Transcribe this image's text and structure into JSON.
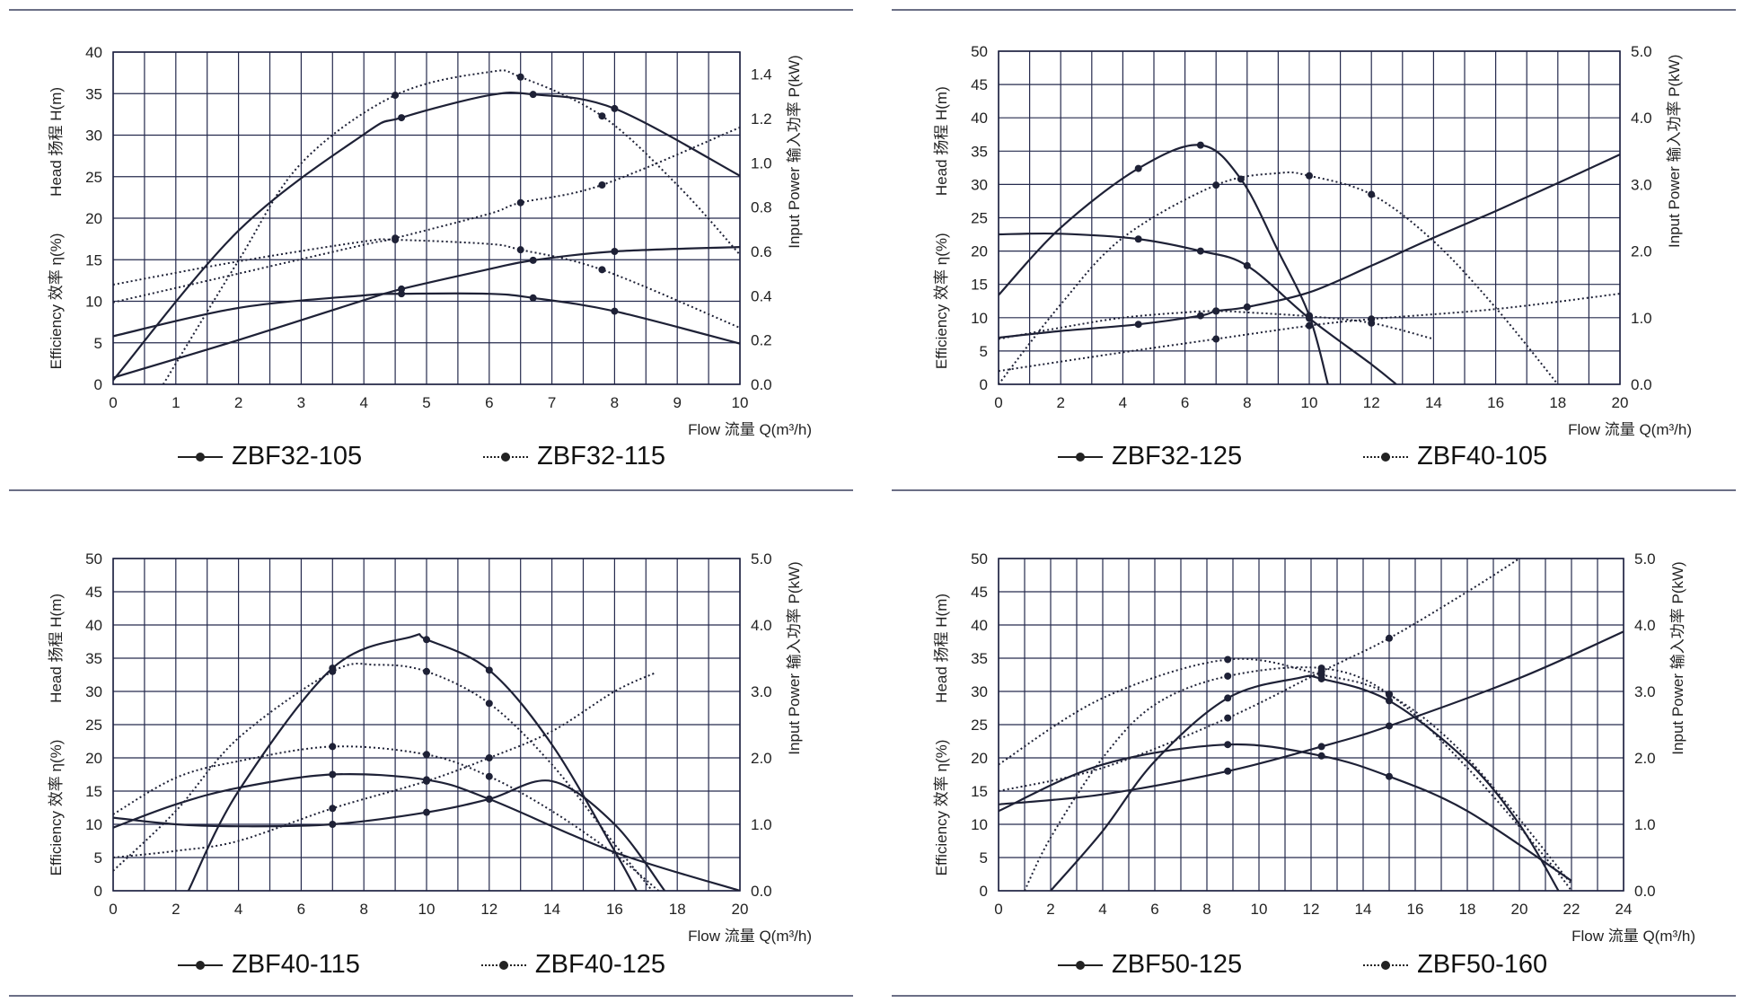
{
  "axis_text": {
    "head": "Head 扬程 H(m)",
    "efficiency": "Efficiency 效率  η(%)",
    "power": "Input Power 输入功率 P(kW)",
    "flow": "Flow 流量 Q(m³/h)"
  },
  "chart_data": [
    {
      "type": "line",
      "xlim": [
        0,
        10
      ],
      "xticks": [
        0,
        1,
        2,
        3,
        4,
        5,
        6,
        7,
        8,
        9,
        10
      ],
      "ylim": [
        0,
        40
      ],
      "yticks": [
        0,
        5,
        10,
        15,
        20,
        25,
        30,
        35,
        40
      ],
      "y2lim": [
        0,
        1.5
      ],
      "y2ticks": [
        "0.0",
        "0.2",
        "0.4",
        "0.6",
        "0.8",
        "1.0",
        "1.2",
        "1.4"
      ],
      "legend": [
        "ZBF32-105",
        "ZBF32-115"
      ],
      "series": [
        {
          "name": "ZBF32-105",
          "kind": "head",
          "style": "solid",
          "x": [
            0,
            2,
            4,
            4.6,
            6,
            6.7,
            8,
            10
          ],
          "y": [
            5.8,
            9.2,
            10.7,
            10.9,
            10.9,
            10.4,
            8.8,
            4.9
          ],
          "markers": [
            4.6,
            6.7,
            8
          ]
        },
        {
          "name": "ZBF32-105",
          "kind": "efficiency",
          "style": "solid",
          "x": [
            0,
            2,
            4,
            4.6,
            6,
            6.7,
            8,
            10
          ],
          "y": [
            0.5,
            18.5,
            30.1,
            32.1,
            34.8,
            34.9,
            33.2,
            25.1
          ],
          "markers": [
            4.6,
            6.7,
            8
          ]
        },
        {
          "name": "ZBF32-105",
          "kind": "power",
          "style": "solid",
          "x": [
            0,
            2,
            4,
            4.6,
            6,
            6.7,
            8,
            10
          ],
          "y": [
            0.03,
            0.2,
            0.38,
            0.43,
            0.52,
            0.56,
            0.6,
            0.62
          ],
          "markers": [
            4.6,
            6.7,
            8
          ]
        },
        {
          "name": "ZBF32-115",
          "kind": "head",
          "style": "dotted",
          "x": [
            0,
            2,
            4,
            4.5,
            6,
            6.5,
            7.8,
            10
          ],
          "y": [
            12,
            14.8,
            17.2,
            17.4,
            16.9,
            16.2,
            13.8,
            6.8
          ],
          "markers": [
            4.5,
            6.5,
            7.8
          ]
        },
        {
          "name": "ZBF32-115",
          "kind": "efficiency",
          "style": "dotted",
          "x": [
            0.8,
            2,
            3,
            4.5,
            6,
            6.5,
            7.8,
            9,
            10
          ],
          "y": [
            0,
            14.9,
            26.6,
            34.8,
            37.6,
            37,
            32.3,
            24,
            15.6
          ],
          "markers": [
            4.5,
            6.5,
            7.8
          ]
        },
        {
          "name": "ZBF32-115",
          "kind": "power",
          "style": "dotted",
          "x": [
            0,
            2,
            4,
            4.5,
            6,
            6.5,
            7.8,
            10
          ],
          "y": [
            0.37,
            0.5,
            0.63,
            0.66,
            0.77,
            0.82,
            0.9,
            1.16
          ],
          "markers": [
            4.5,
            6.5,
            7.8
          ]
        }
      ]
    },
    {
      "type": "line",
      "xlim": [
        0,
        20
      ],
      "xticks": [
        0,
        2,
        4,
        6,
        8,
        10,
        12,
        14,
        16,
        18,
        20
      ],
      "ylim": [
        0,
        50
      ],
      "yticks": [
        0,
        5,
        10,
        15,
        20,
        25,
        30,
        35,
        40,
        45,
        50
      ],
      "y2lim": [
        0,
        5
      ],
      "y2ticks": [
        "0.0",
        "1.0",
        "2.0",
        "3.0",
        "4.0",
        "5.0"
      ],
      "legend": [
        "ZBF32-125",
        "ZBF40-105"
      ],
      "series": [
        {
          "name": "ZBF32-125",
          "kind": "head",
          "style": "solid",
          "x": [
            0,
            2,
            4.5,
            6.5,
            8,
            10,
            12,
            12.8
          ],
          "y": [
            22.5,
            22.6,
            21.8,
            20,
            17.8,
            9.9,
            3,
            0
          ],
          "markers": [
            4.5,
            6.5,
            8,
            10
          ]
        },
        {
          "name": "ZBF32-125",
          "kind": "efficiency",
          "style": "solid",
          "x": [
            0,
            2,
            4.5,
            6.5,
            7.8,
            9,
            10,
            10.6
          ],
          "y": [
            13.4,
            23.5,
            32.4,
            35.9,
            30.8,
            20,
            10.3,
            0
          ],
          "markers": [
            4.5,
            6.5,
            7.8,
            10
          ]
        },
        {
          "name": "ZBF32-125",
          "kind": "power",
          "style": "solid",
          "x": [
            0,
            2,
            4.5,
            6.5,
            7,
            8,
            10,
            12,
            14,
            16,
            18,
            20
          ],
          "y": [
            0.7,
            0.8,
            0.9,
            1.03,
            1.1,
            1.16,
            1.38,
            1.78,
            2.2,
            2.6,
            3.02,
            3.45
          ],
          "markers": [
            4.5,
            6.5,
            7,
            8
          ]
        },
        {
          "name": "ZBF40-105",
          "kind": "head",
          "style": "dotted",
          "x": [
            0,
            2,
            4,
            6,
            7,
            8,
            10,
            12,
            14
          ],
          "y": [
            6.8,
            8.5,
            10,
            10.8,
            11,
            10.8,
            10.2,
            9.2,
            6.8
          ],
          "markers": [
            7,
            10,
            12
          ]
        },
        {
          "name": "ZBF40-105",
          "kind": "efficiency",
          "style": "dotted",
          "x": [
            0,
            2,
            4,
            7,
            9,
            10,
            12,
            14,
            16,
            18
          ],
          "y": [
            0,
            12,
            22,
            29.9,
            31.7,
            31.3,
            28.5,
            21.5,
            11.5,
            0
          ],
          "markers": [
            7,
            10,
            12
          ]
        },
        {
          "name": "ZBF40-105",
          "kind": "power",
          "style": "dotted",
          "x": [
            0,
            4,
            7,
            10,
            12,
            16,
            20
          ],
          "y": [
            0.2,
            0.48,
            0.68,
            0.88,
            0.98,
            1.13,
            1.36
          ],
          "markers": [
            7,
            10,
            12
          ]
        }
      ]
    },
    {
      "type": "line",
      "xlim": [
        0,
        20
      ],
      "xticks": [
        0,
        2,
        4,
        6,
        8,
        10,
        12,
        14,
        16,
        18,
        20
      ],
      "ylim": [
        0,
        50
      ],
      "yticks": [
        0,
        5,
        10,
        15,
        20,
        25,
        30,
        35,
        40,
        45,
        50
      ],
      "y2lim": [
        0,
        5
      ],
      "y2ticks": [
        "0.0",
        "1.0",
        "2.0",
        "3.0",
        "4.0",
        "5.0"
      ],
      "legend": [
        "ZBF40-115",
        "ZBF40-125"
      ],
      "series": [
        {
          "name": "ZBF40-115",
          "kind": "head",
          "style": "solid",
          "x": [
            0,
            2,
            4,
            7,
            10,
            12,
            14,
            16,
            17.6
          ],
          "y": [
            11,
            10,
            9.7,
            10,
            11.8,
            13.8,
            16.5,
            10,
            0
          ],
          "markers": [
            7,
            10,
            12
          ]
        },
        {
          "name": "ZBF40-115",
          "kind": "efficiency",
          "style": "solid",
          "x": [
            2.4,
            4,
            7,
            9.5,
            10,
            12,
            14,
            16,
            16.7
          ],
          "y": [
            0,
            15,
            33.5,
            38.2,
            37.8,
            33.2,
            22,
            6,
            0
          ],
          "markers": [
            7,
            10,
            12
          ]
        },
        {
          "name": "ZBF40-115",
          "kind": "power",
          "style": "solid",
          "x": [
            0,
            2,
            4,
            7,
            10,
            12,
            16,
            20
          ],
          "y": [
            0.95,
            1.3,
            1.55,
            1.75,
            1.67,
            1.38,
            0.58,
            0
          ],
          "markers": [
            7,
            10,
            12
          ]
        },
        {
          "name": "ZBF40-125",
          "kind": "head",
          "style": "dotted",
          "x": [
            0,
            2,
            4,
            7,
            10,
            12,
            14,
            16,
            17.3
          ],
          "y": [
            5,
            6,
            7.5,
            12.4,
            16.5,
            20,
            24,
            30,
            32.8
          ],
          "markers": [
            7,
            10,
            12
          ]
        },
        {
          "name": "ZBF40-125",
          "kind": "efficiency",
          "style": "dotted",
          "x": [
            0,
            2,
            4,
            7,
            8.4,
            10,
            12,
            14,
            16,
            17.2
          ],
          "y": [
            3,
            12,
            23,
            33,
            34,
            33,
            28.2,
            19,
            7,
            0
          ],
          "markers": [
            7,
            10,
            12
          ]
        },
        {
          "name": "ZBF40-125",
          "kind": "power",
          "style": "dotted",
          "x": [
            0,
            2,
            4,
            7,
            10,
            12,
            14,
            16,
            17.4
          ],
          "y": [
            1.15,
            1.7,
            1.95,
            2.17,
            2.05,
            1.72,
            1.2,
            0.55,
            0
          ],
          "markers": [
            7,
            10,
            12
          ]
        }
      ]
    },
    {
      "type": "line",
      "xlim": [
        0,
        24
      ],
      "xticks": [
        0,
        2,
        4,
        6,
        8,
        10,
        12,
        14,
        16,
        18,
        20,
        22,
        24
      ],
      "ylim": [
        0,
        50
      ],
      "yticks": [
        0,
        5,
        10,
        15,
        20,
        25,
        30,
        35,
        40,
        45,
        50
      ],
      "y2lim": [
        0,
        5
      ],
      "y2ticks": [
        "0.0",
        "1.0",
        "2.0",
        "3.0",
        "4.0",
        "5.0"
      ],
      "legend": [
        "ZBF50-125",
        "ZBF50-160"
      ],
      "series": [
        {
          "name": "ZBF50-125",
          "kind": "head",
          "style": "solid",
          "x": [
            0,
            4,
            8.8,
            12.4,
            15,
            20,
            24
          ],
          "y": [
            13,
            14.5,
            18,
            21.7,
            24.8,
            32,
            39
          ],
          "markers": [
            8.8,
            12.4,
            15
          ]
        },
        {
          "name": "ZBF50-125",
          "kind": "efficiency",
          "style": "solid",
          "x": [
            2,
            4,
            6,
            8.8,
            11.5,
            12.4,
            15,
            18,
            20,
            21.5
          ],
          "y": [
            0,
            9,
            19.5,
            29,
            32,
            31.9,
            28.6,
            19.5,
            10,
            0
          ],
          "markers": [
            8.8,
            12.4,
            15
          ]
        },
        {
          "name": "ZBF50-125",
          "kind": "power",
          "style": "solid",
          "x": [
            0,
            4,
            8.8,
            12.4,
            15,
            18,
            22
          ],
          "y": [
            1.2,
            1.9,
            2.2,
            2.03,
            1.72,
            1.2,
            0.15
          ],
          "markers": [
            8.8,
            12.4,
            15
          ]
        },
        {
          "name": "ZBF50-160",
          "kind": "head",
          "style": "dotted",
          "x": [
            0,
            4,
            8.8,
            12.4,
            15,
            18,
            20
          ],
          "y": [
            15,
            18.5,
            26,
            33,
            38,
            45,
            50
          ],
          "markers": [
            8.8,
            12.4,
            15
          ]
        },
        {
          "name": "ZBF50-160",
          "kind": "efficiency",
          "style": "dotted",
          "x": [
            1,
            2,
            4,
            6,
            8.8,
            12.4,
            15,
            18,
            21,
            22
          ],
          "y": [
            0,
            8,
            20,
            28,
            32.3,
            33.5,
            29.6,
            18.5,
            5,
            0
          ],
          "markers": [
            8.8,
            12.4,
            15
          ]
        },
        {
          "name": "ZBF50-160",
          "kind": "power",
          "style": "dotted",
          "x": [
            0,
            4,
            8.8,
            12.4,
            15,
            18,
            22
          ],
          "y": [
            1.9,
            2.9,
            3.48,
            3.25,
            2.95,
            2.0,
            0.1
          ],
          "markers": [
            8.8,
            12.4,
            15
          ]
        }
      ]
    }
  ]
}
